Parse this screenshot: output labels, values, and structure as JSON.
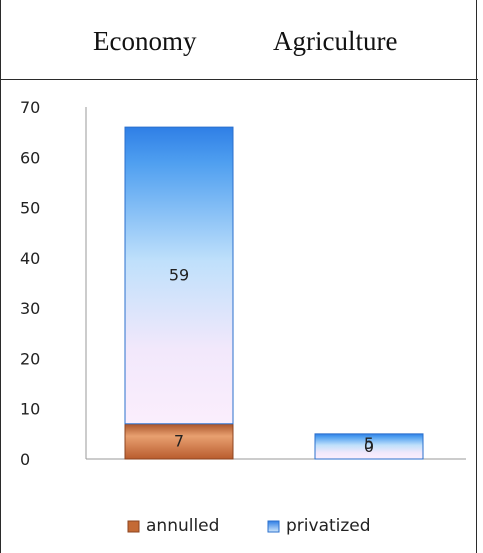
{
  "header": {
    "columns": [
      "Economy",
      "Agriculture"
    ]
  },
  "chart_data": {
    "type": "bar",
    "stacked": true,
    "categories": [
      "",
      ""
    ],
    "series": [
      {
        "name": "annulled",
        "values": [
          7,
          0
        ],
        "labels": [
          "7",
          "0"
        ],
        "color": "#c46a35"
      },
      {
        "name": "privatized",
        "values": [
          59,
          5
        ],
        "labels": [
          "59",
          "5"
        ],
        "color": "#3d8ce8"
      }
    ],
    "ylim": [
      0,
      70
    ],
    "yticks": [
      0,
      10,
      20,
      30,
      40,
      50,
      60,
      70
    ],
    "grid": false,
    "legend_position": "bottom"
  }
}
